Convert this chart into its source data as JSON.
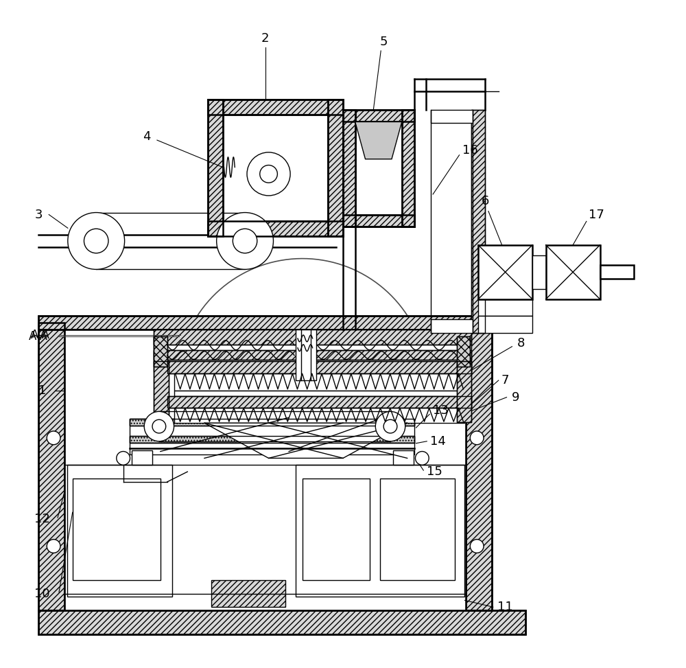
{
  "background_color": "#ffffff",
  "line_color": "#000000",
  "label_fontsize": 13,
  "lw": 1.0,
  "lw2": 1.8
}
